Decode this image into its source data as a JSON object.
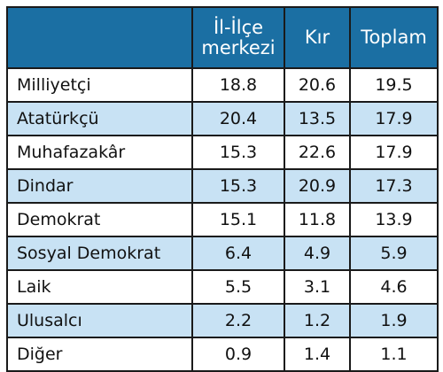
{
  "colors": {
    "header_bg": "#1b6fa3",
    "header_text": "#ffffff",
    "row_shade": "#c8e2f4",
    "row_plain": "#ffffff",
    "border": "#1a1a1a"
  },
  "chart_data": {
    "type": "table",
    "columns": [
      "",
      "İl-İlçe merkezi",
      "Kır",
      "Toplam"
    ],
    "header_lines": {
      "c1": [
        "İl-İlçe",
        "merkezi"
      ],
      "c2": [
        "Kır"
      ],
      "c3": [
        "Toplam"
      ]
    },
    "rows": [
      {
        "label": "Milliyetçi",
        "values": [
          "18.8",
          "20.6",
          "19.5"
        ]
      },
      {
        "label": "Atatürkçü",
        "values": [
          "20.4",
          "13.5",
          "17.9"
        ]
      },
      {
        "label": "Muhafazakâr",
        "values": [
          "15.3",
          "22.6",
          "17.9"
        ]
      },
      {
        "label": "Dindar",
        "values": [
          "15.3",
          "20.9",
          "17.3"
        ]
      },
      {
        "label": "Demokrat",
        "values": [
          "15.1",
          "11.8",
          "13.9"
        ]
      },
      {
        "label": "Sosyal Demokrat",
        "values": [
          "6.4",
          "4.9",
          "5.9"
        ]
      },
      {
        "label": "Laik",
        "values": [
          "5.5",
          "3.1",
          "4.6"
        ]
      },
      {
        "label": "Ulusalcı",
        "values": [
          "2.2",
          "1.2",
          "1.9"
        ]
      },
      {
        "label": "Diğer",
        "values": [
          "0.9",
          "1.4",
          "1.1"
        ]
      }
    ]
  }
}
